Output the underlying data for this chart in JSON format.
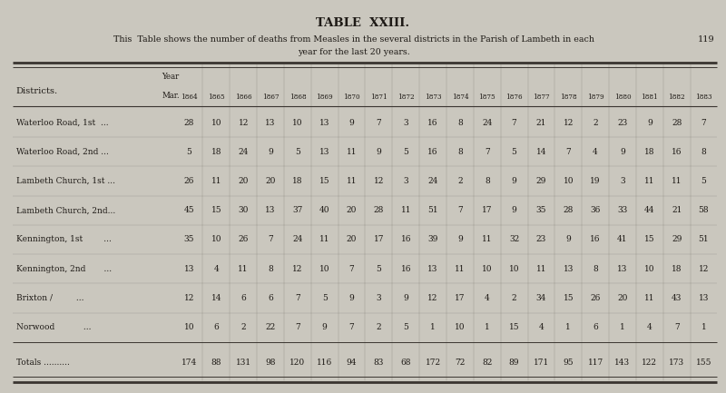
{
  "title": "TABLE  XXIII.",
  "subtitle_line1": "This  Table shows the number of deaths from Measles in the several districts in the Parish of Lambeth in each",
  "subtitle_line2": "year for the last 20 years.",
  "page_number": "119",
  "years": [
    "1864",
    "1865",
    "1866",
    "1867",
    "1868",
    "1869",
    "1870",
    "1871",
    "1872",
    "1873",
    "1874",
    "1875",
    "1876",
    "1877",
    "1878",
    "1879",
    "1880",
    "1881",
    "1882",
    "1883"
  ],
  "district_labels": [
    "Waterloo Road, 1st  ...",
    "Waterloo Road, 2nd ...",
    "Lambeth Church, 1st ...",
    "Lambeth Church, 2nd...",
    "Kennington, 1st        ...",
    "Kennington, 2nd       ...",
    "Brixton /         ...",
    "Norwood           ..."
  ],
  "data": [
    [
      28,
      10,
      12,
      13,
      10,
      13,
      9,
      7,
      3,
      16,
      8,
      24,
      7,
      21,
      12,
      2,
      23,
      9,
      28,
      7
    ],
    [
      5,
      18,
      24,
      9,
      5,
      13,
      11,
      9,
      5,
      16,
      8,
      7,
      5,
      14,
      7,
      4,
      9,
      18,
      16,
      8
    ],
    [
      26,
      11,
      20,
      20,
      18,
      15,
      11,
      12,
      3,
      24,
      2,
      8,
      9,
      29,
      10,
      19,
      3,
      11,
      11,
      5
    ],
    [
      45,
      15,
      30,
      13,
      37,
      40,
      20,
      28,
      11,
      51,
      7,
      17,
      9,
      35,
      28,
      36,
      33,
      44,
      21,
      58
    ],
    [
      35,
      10,
      26,
      7,
      24,
      11,
      20,
      17,
      16,
      39,
      9,
      11,
      32,
      23,
      9,
      16,
      41,
      15,
      29,
      51
    ],
    [
      13,
      4,
      11,
      8,
      12,
      10,
      7,
      5,
      16,
      13,
      11,
      10,
      10,
      11,
      13,
      8,
      13,
      10,
      18,
      12
    ],
    [
      12,
      14,
      6,
      6,
      7,
      5,
      9,
      3,
      9,
      12,
      17,
      4,
      2,
      34,
      15,
      26,
      20,
      11,
      43,
      13
    ],
    [
      10,
      6,
      2,
      22,
      7,
      9,
      7,
      2,
      5,
      1,
      10,
      1,
      15,
      4,
      1,
      6,
      1,
      4,
      7,
      1
    ]
  ],
  "totals": [
    174,
    88,
    131,
    98,
    120,
    116,
    94,
    83,
    68,
    172,
    72,
    82,
    89,
    171,
    95,
    117,
    143,
    122,
    173,
    155
  ],
  "bg_color": "#cac7be",
  "text_color": "#1e1a16",
  "line_color": "#3a3530"
}
